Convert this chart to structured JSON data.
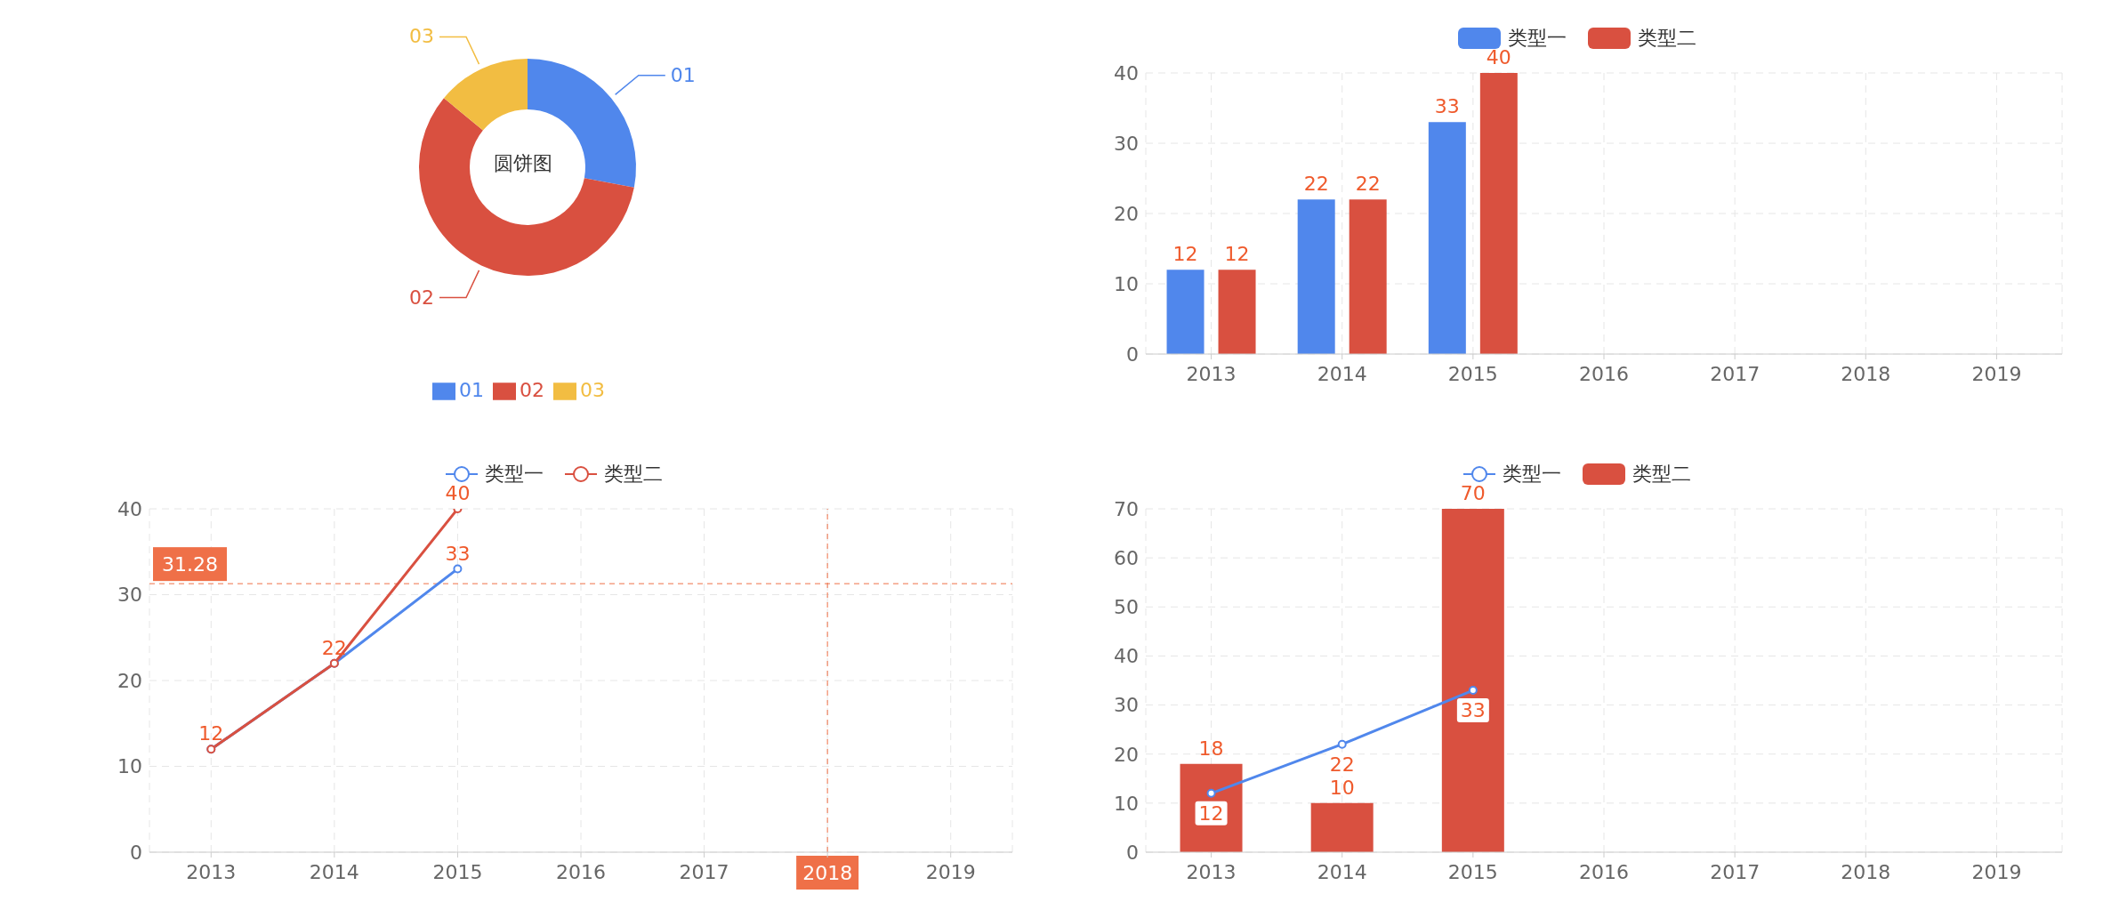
{
  "chart_data": [
    {
      "type": "donut",
      "title": "圆饼图",
      "categories": [
        "01",
        "02",
        "03"
      ],
      "values": [
        28,
        58,
        14
      ],
      "colors": [
        "#5087ec",
        "#d95040",
        "#f2bd42"
      ],
      "legend": "bottom"
    },
    {
      "type": "bar",
      "categories": [
        "2013",
        "2014",
        "2015",
        "2016",
        "2017",
        "2018",
        "2019"
      ],
      "series": [
        {
          "name": "类型一",
          "color": "#5087ec",
          "values": [
            12,
            22,
            33,
            null,
            null,
            null,
            null
          ]
        },
        {
          "name": "类型二",
          "color": "#d95040",
          "values": [
            12,
            22,
            40,
            null,
            null,
            null,
            null
          ]
        }
      ],
      "ylim": [
        0,
        40
      ],
      "yticks": [
        0,
        10,
        20,
        30,
        40
      ],
      "grid": true,
      "legend": "top",
      "data_labels": true
    },
    {
      "type": "line",
      "categories": [
        "2013",
        "2014",
        "2015",
        "2016",
        "2017",
        "2018",
        "2019"
      ],
      "series": [
        {
          "name": "类型一",
          "color": "#5087ec",
          "values": [
            12,
            22,
            33,
            null,
            null,
            null,
            null
          ],
          "value_labels": [
            null,
            null,
            "33",
            null,
            null,
            null,
            null
          ]
        },
        {
          "name": "类型二",
          "color": "#d95040",
          "values": [
            12,
            22,
            40,
            null,
            null,
            null,
            null
          ],
          "value_labels": [
            "12",
            "22",
            "40",
            null,
            null,
            null,
            null
          ]
        }
      ],
      "ylim": [
        0,
        40
      ],
      "yticks": [
        0,
        10,
        20,
        30,
        40
      ],
      "grid": true,
      "legend": "top",
      "data_labels": true,
      "marker": "circle",
      "ref_lines": [
        {
          "axis": "y",
          "value": 31.28,
          "label": "31.28",
          "color": "#ef7048",
          "line_style": "dashed"
        },
        {
          "axis": "x",
          "value": "2018",
          "label": "2018",
          "color": "#ef7048",
          "line_style": "dashed"
        }
      ]
    },
    {
      "type": "bar",
      "categories": [
        "2013",
        "2014",
        "2015",
        "2016",
        "2017",
        "2018",
        "2019"
      ],
      "series": [
        {
          "name": "类型一",
          "type": "line",
          "color": "#5087ec",
          "values": [
            12,
            22,
            33,
            null,
            null,
            null,
            null
          ]
        },
        {
          "name": "类型二",
          "color": "#d95040",
          "values": [
            18,
            10,
            70,
            null,
            null,
            null,
            null
          ]
        }
      ],
      "ylim": [
        0,
        70
      ],
      "yticks": [
        0,
        10,
        20,
        30,
        40,
        50,
        60,
        70
      ],
      "grid": true,
      "legend": "top",
      "data_labels": true,
      "marker": "circle"
    }
  ]
}
